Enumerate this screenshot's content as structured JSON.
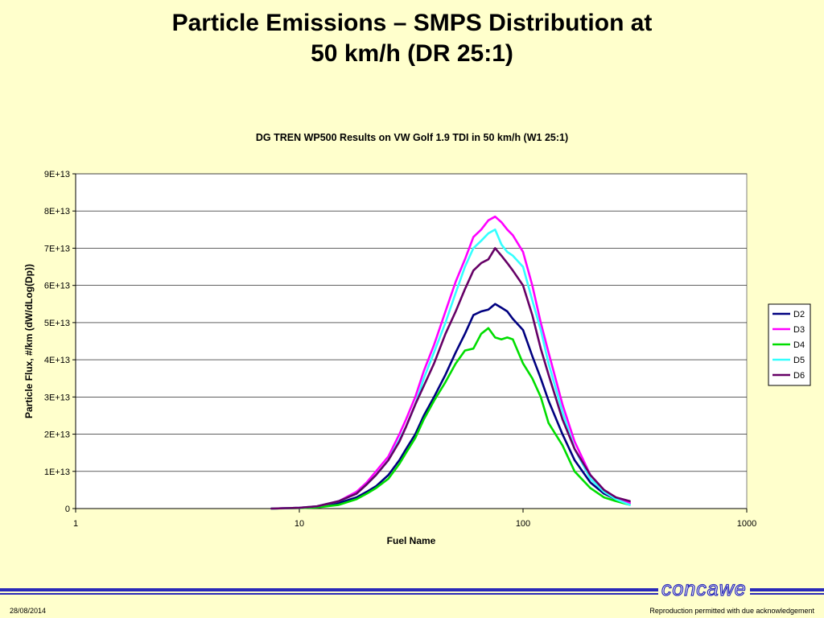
{
  "slide": {
    "title_line1": "Particle Emissions – SMPS Distribution at",
    "title_line2": "50 km/h (DR 25:1)",
    "date": "28/08/2014",
    "note": "Reproduction permitted with due acknowledgement",
    "logo": "concawe"
  },
  "colors": {
    "background": "#FFFFCC",
    "plot_background": "#FFFFFF",
    "footer_bar": "#2A2AB8"
  },
  "chart_data": {
    "type": "line",
    "title": "DG TREN WP500 Results on VW Golf 1.9 TDI in 50 km/h (W1 25:1)",
    "xlabel": "Fuel Name",
    "ylabel": "Particle Flux, #/km (dW/dLog(Dp))",
    "x_scale": "log",
    "xlim": [
      1,
      1000
    ],
    "ylim": [
      0,
      90000000000000.0
    ],
    "x_ticks": [
      1,
      10,
      100,
      1000
    ],
    "x_tick_labels": [
      "1",
      "10",
      "100",
      "1000"
    ],
    "y_ticks": [
      0,
      10000000000000.0,
      20000000000000.0,
      30000000000000.0,
      40000000000000.0,
      50000000000000.0,
      60000000000000.0,
      70000000000000.0,
      80000000000000.0,
      90000000000000.0
    ],
    "y_tick_labels": [
      "0",
      "1E+13",
      "2E+13",
      "3E+13",
      "4E+13",
      "5E+13",
      "6E+13",
      "7E+13",
      "8E+13",
      "9E+13"
    ],
    "grid": "horizontal",
    "legend_position": "right",
    "x": [
      7.5,
      10,
      12,
      15,
      18,
      20,
      22,
      25,
      28,
      30,
      33,
      36,
      40,
      45,
      50,
      55,
      60,
      65,
      70,
      75,
      80,
      85,
      90,
      100,
      110,
      120,
      130,
      150,
      170,
      200,
      230,
      260,
      300
    ],
    "series": [
      {
        "name": "D2",
        "color": "#000080",
        "values": [
          0,
          200000000000.0,
          500000000000.0,
          1500000000000.0,
          3000000000000.0,
          4500000000000.0,
          6000000000000.0,
          9000000000000.0,
          13000000000000.0,
          16000000000000.0,
          20000000000000.0,
          25000000000000.0,
          30000000000000.0,
          36000000000000.0,
          42000000000000.0,
          47000000000000.0,
          52000000000000.0,
          53000000000000.0,
          53500000000000.0,
          55000000000000.0,
          54000000000000.0,
          53000000000000.0,
          51000000000000.0,
          48000000000000.0,
          41000000000000.0,
          35000000000000.0,
          29000000000000.0,
          20000000000000.0,
          13000000000000.0,
          7000000000000.0,
          4000000000000.0,
          2500000000000.0,
          1500000000000.0
        ]
      },
      {
        "name": "D3",
        "color": "#FF00FF",
        "values": [
          0,
          200000000000.0,
          600000000000.0,
          2000000000000.0,
          4500000000000.0,
          7000000000000.0,
          10000000000000.0,
          14000000000000.0,
          20000000000000.0,
          24000000000000.0,
          30000000000000.0,
          37000000000000.0,
          44000000000000.0,
          53000000000000.0,
          61000000000000.0,
          67000000000000.0,
          73000000000000.0,
          75000000000000.0,
          77500000000000.0,
          78500000000000.0,
          77000000000000.0,
          75000000000000.0,
          73500000000000.0,
          69000000000000.0,
          60000000000000.0,
          50000000000000.0,
          42000000000000.0,
          28000000000000.0,
          18000000000000.0,
          9000000000000.0,
          5000000000000.0,
          3000000000000.0,
          1500000000000.0
        ]
      },
      {
        "name": "D4",
        "color": "#00DD00",
        "values": [
          0,
          100000000000.0,
          300000000000.0,
          1000000000000.0,
          2500000000000.0,
          4000000000000.0,
          5500000000000.0,
          8000000000000.0,
          12000000000000.0,
          15000000000000.0,
          19000000000000.0,
          24000000000000.0,
          29000000000000.0,
          34000000000000.0,
          39000000000000.0,
          42500000000000.0,
          43000000000000.0,
          47000000000000.0,
          48500000000000.0,
          46000000000000.0,
          45500000000000.0,
          46000000000000.0,
          45500000000000.0,
          39000000000000.0,
          35000000000000.0,
          30000000000000.0,
          23000000000000.0,
          17000000000000.0,
          10000000000000.0,
          5500000000000.0,
          3000000000000.0,
          2000000000000.0,
          1000000000000.0
        ]
      },
      {
        "name": "D5",
        "color": "#33FFFF",
        "values": [
          0,
          200000000000.0,
          600000000000.0,
          2000000000000.0,
          4000000000000.0,
          6500000000000.0,
          9000000000000.0,
          13000000000000.0,
          18500000000000.0,
          22000000000000.0,
          28000000000000.0,
          35000000000000.0,
          42000000000000.0,
          50000000000000.0,
          58000000000000.0,
          65000000000000.0,
          70000000000000.0,
          72000000000000.0,
          74000000000000.0,
          75000000000000.0,
          71000000000000.0,
          69000000000000.0,
          68000000000000.0,
          65000000000000.0,
          56000000000000.0,
          48000000000000.0,
          39000000000000.0,
          26000000000000.0,
          16000000000000.0,
          8000000000000.0,
          4500000000000.0,
          2500000000000.0,
          1000000000000.0
        ]
      },
      {
        "name": "D6",
        "color": "#660066",
        "values": [
          0,
          200000000000.0,
          600000000000.0,
          2000000000000.0,
          4000000000000.0,
          6500000000000.0,
          9000000000000.0,
          13000000000000.0,
          18000000000000.0,
          22000000000000.0,
          28000000000000.0,
          33000000000000.0,
          39000000000000.0,
          47000000000000.0,
          53000000000000.0,
          59000000000000.0,
          64000000000000.0,
          66000000000000.0,
          67000000000000.0,
          70000000000000.0,
          68000000000000.0,
          66000000000000.0,
          64000000000000.0,
          60000000000000.0,
          52000000000000.0,
          43000000000000.0,
          36000000000000.0,
          24000000000000.0,
          16000000000000.0,
          9000000000000.0,
          5000000000000.0,
          3000000000000.0,
          2000000000000.0
        ]
      }
    ]
  }
}
